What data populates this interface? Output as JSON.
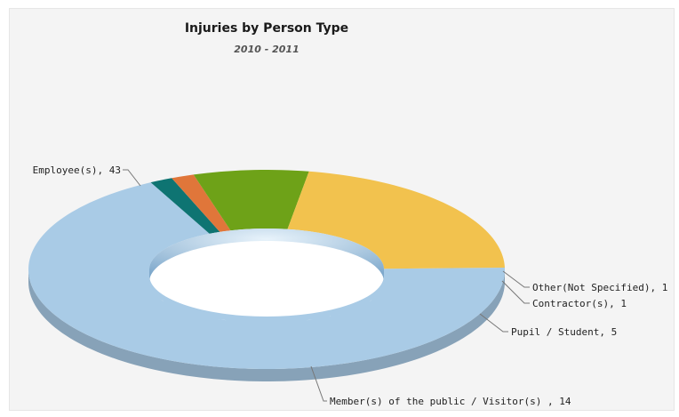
{
  "chart_data": {
    "type": "pie",
    "variant": "3d-donut",
    "title": "Injuries by Person Type",
    "subtitle": "2010 - 2011",
    "labels": [
      "Employee(s), 43",
      "Other(Not Specified), 1",
      "Contractor(s), 1",
      "Pupil / Student, 5",
      "Member(s) of the public / Visitor(s) , 14"
    ],
    "slices": [
      {
        "name": "Employee(s)",
        "value": 43,
        "color": "#a9cbe6"
      },
      {
        "name": "Other(Not Specified)",
        "value": 1,
        "color": "#0e7472"
      },
      {
        "name": "Contractor(s)",
        "value": 1,
        "color": "#e0763a"
      },
      {
        "name": "Pupil / Student",
        "value": 5,
        "color": "#6ea218"
      },
      {
        "name": "Member(s) of the public / Visitor(s)",
        "value": 14,
        "color": "#f2c24e"
      }
    ],
    "legend": "none"
  }
}
